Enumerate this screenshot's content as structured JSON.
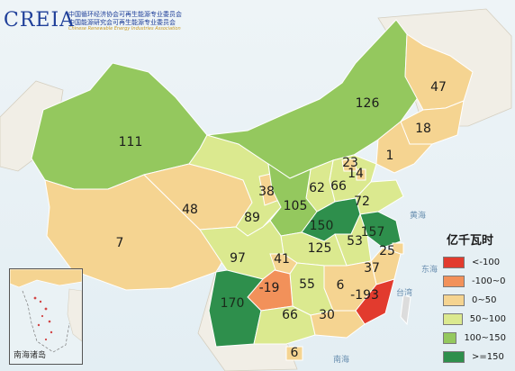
{
  "header": {
    "logo_mark": "CREIA",
    "org_line1": "中国循环经济协会可再生能源专业委员会",
    "org_line2": "中国能源研究会可再生能源专业委员会",
    "org_line3": "Chinese Renewable Energy Industries Association"
  },
  "legend": {
    "title": "亿千瓦时",
    "items": [
      {
        "label": "<-100",
        "color": "#e23b2e"
      },
      {
        "label": "-100~0",
        "color": "#f2915a"
      },
      {
        "label": "0~50",
        "color": "#f5d491"
      },
      {
        "label": "50~100",
        "color": "#dbe98f"
      },
      {
        "label": "100~150",
        "color": "#94c85e"
      },
      {
        "label": ">=150",
        "color": "#2e8f4c"
      }
    ]
  },
  "map_labels": [
    {
      "id": "heilongjiang",
      "value": "47"
    },
    {
      "id": "jilin",
      "value": "18"
    },
    {
      "id": "liaoning",
      "value": "1"
    },
    {
      "id": "inner-mongolia",
      "value": "126"
    },
    {
      "id": "xinjiang",
      "value": "111"
    },
    {
      "id": "tibet",
      "value": "7"
    },
    {
      "id": "qinghai",
      "value": "48"
    },
    {
      "id": "gansu",
      "value": "89"
    },
    {
      "id": "ningxia",
      "value": "38"
    },
    {
      "id": "shaanxi",
      "value": "105"
    },
    {
      "id": "shanxi",
      "value": "62"
    },
    {
      "id": "hebei",
      "value": "66"
    },
    {
      "id": "beijing",
      "value": "23"
    },
    {
      "id": "tianjin",
      "value": "14"
    },
    {
      "id": "shandong",
      "value": "72"
    },
    {
      "id": "henan",
      "value": "150"
    },
    {
      "id": "anhui",
      "value": "53"
    },
    {
      "id": "jiangsu",
      "value": "157"
    },
    {
      "id": "shanghai",
      "value": "25"
    },
    {
      "id": "sichuan",
      "value": "97"
    },
    {
      "id": "chongqing",
      "value": "41"
    },
    {
      "id": "hubei",
      "value": "125"
    },
    {
      "id": "zhejiang",
      "value": "37"
    },
    {
      "id": "yunnan",
      "value": "170"
    },
    {
      "id": "guizhou",
      "value": "-19"
    },
    {
      "id": "hunan",
      "value": "55"
    },
    {
      "id": "jiangxi",
      "value": "6"
    },
    {
      "id": "fujian",
      "value": "-193"
    },
    {
      "id": "guangxi",
      "value": "66"
    },
    {
      "id": "guangdong",
      "value": "30"
    },
    {
      "id": "hainan",
      "value": "6"
    }
  ],
  "sea_labels": [
    "黄海",
    "东海",
    "南海",
    "台湾"
  ],
  "inset": {
    "caption": "南海诸岛"
  }
}
